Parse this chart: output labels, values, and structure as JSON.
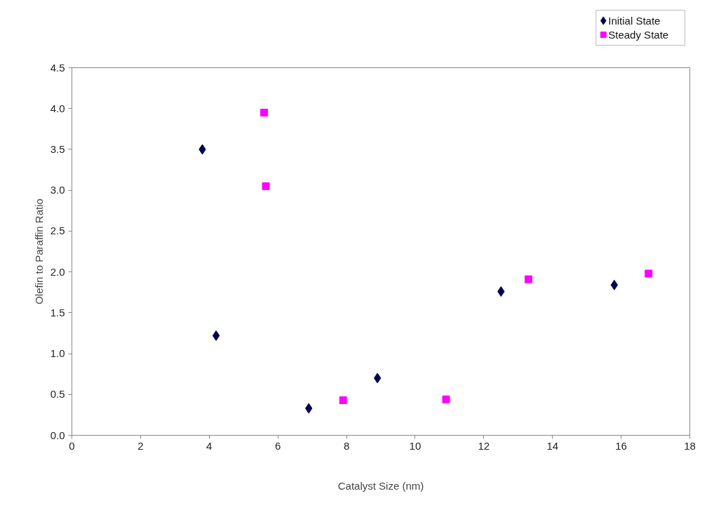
{
  "chart_data": {
    "type": "scatter",
    "xlabel": "Catalyst Size (nm)",
    "ylabel": "Olefin to Paraffin Ratio",
    "xlim": [
      0,
      18
    ],
    "xticks": [
      0,
      2,
      4,
      6,
      8,
      10,
      12,
      14,
      16,
      18
    ],
    "ylim": [
      0,
      4.5
    ],
    "yticks": [
      {
        "value": 0,
        "label": "0.0"
      },
      0.5,
      {
        "value": 1,
        "label": "1.0"
      },
      1.5,
      {
        "value": 2,
        "label": "2.0"
      },
      2.5,
      {
        "value": 3,
        "label": "3.0"
      },
      3.5,
      {
        "value": 4,
        "label": "4.0"
      },
      4.5
    ],
    "grid": false,
    "legend": "top right",
    "series": [
      {
        "name": "Initial State",
        "color": "#000050",
        "marker": "diamond",
        "x": [
          3.8,
          4.2,
          6.9,
          8.9,
          12.5,
          15.8
        ],
        "values": [
          3.5,
          1.22,
          0.33,
          0.7,
          1.76,
          1.84
        ]
      },
      {
        "name": "Steady State",
        "color": "#ff00ff",
        "marker": "square",
        "x": [
          5.6,
          5.65,
          7.9,
          10.9,
          13.3,
          16.8
        ],
        "values": [
          3.95,
          3.05,
          0.43,
          0.44,
          1.91,
          1.98
        ]
      }
    ]
  }
}
